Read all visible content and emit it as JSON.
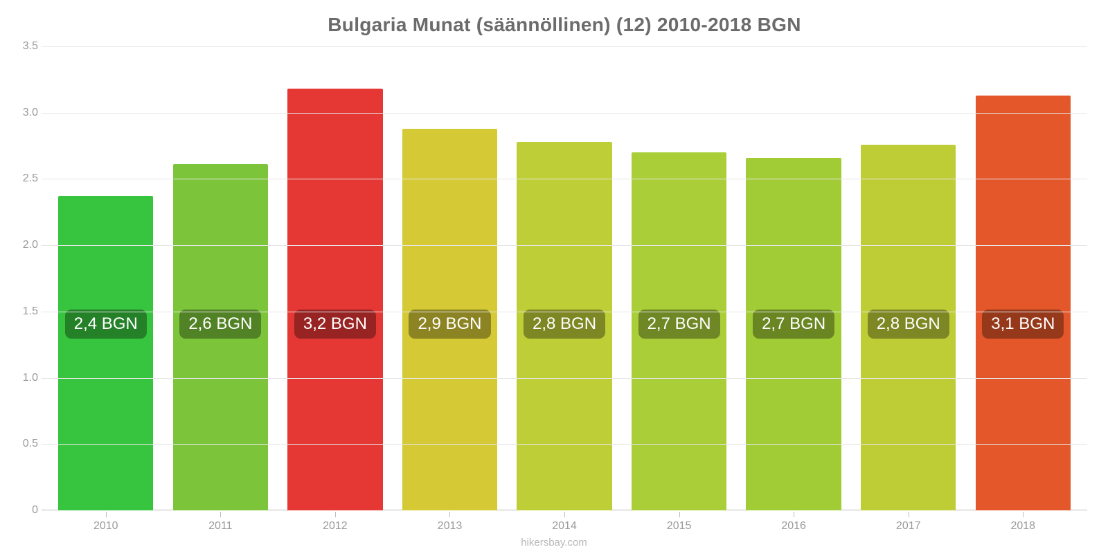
{
  "chart": {
    "type": "bar",
    "title": "Bulgaria Munat (säännöllinen) (12) 2010-2018 BGN",
    "title_color": "#6b6b6b",
    "title_fontsize": 28,
    "background_color": "#ffffff",
    "grid_color": "#e6e6e6",
    "axis_color": "#bdbdbd",
    "tick_label_color": "#9a9a9a",
    "tick_fontsize": 16,
    "value_label_fontsize": 24,
    "value_label_text_color": "#ffffff",
    "value_label_bg": "rgba(0,0,0,0.34)",
    "ylim": [
      0,
      3.5
    ],
    "yticks": [
      0,
      0.5,
      1.0,
      1.5,
      2.0,
      2.5,
      3.0,
      3.5
    ],
    "ytick_labels": [
      "0",
      "0.5",
      "1.0",
      "1.5",
      "2.0",
      "2.5",
      "3.0",
      "3.5"
    ],
    "bar_width_pct": 83,
    "badge_center_value": 1.4,
    "categories": [
      "2010",
      "2011",
      "2012",
      "2013",
      "2014",
      "2015",
      "2016",
      "2017",
      "2018"
    ],
    "values": [
      2.37,
      2.61,
      3.18,
      2.88,
      2.78,
      2.7,
      2.66,
      2.76,
      3.13
    ],
    "value_labels": [
      "2,4 BGN",
      "2,6 BGN",
      "3,2 BGN",
      "2,9 BGN",
      "2,8 BGN",
      "2,7 BGN",
      "2,7 BGN",
      "2,8 BGN",
      "3,1 BGN"
    ],
    "bar_colors": [
      "#37c43e",
      "#7cc53a",
      "#e53734",
      "#d5c936",
      "#bece36",
      "#a9ce37",
      "#a2cc36",
      "#becd36",
      "#e4572a"
    ],
    "attribution": "hikersbay.com"
  }
}
